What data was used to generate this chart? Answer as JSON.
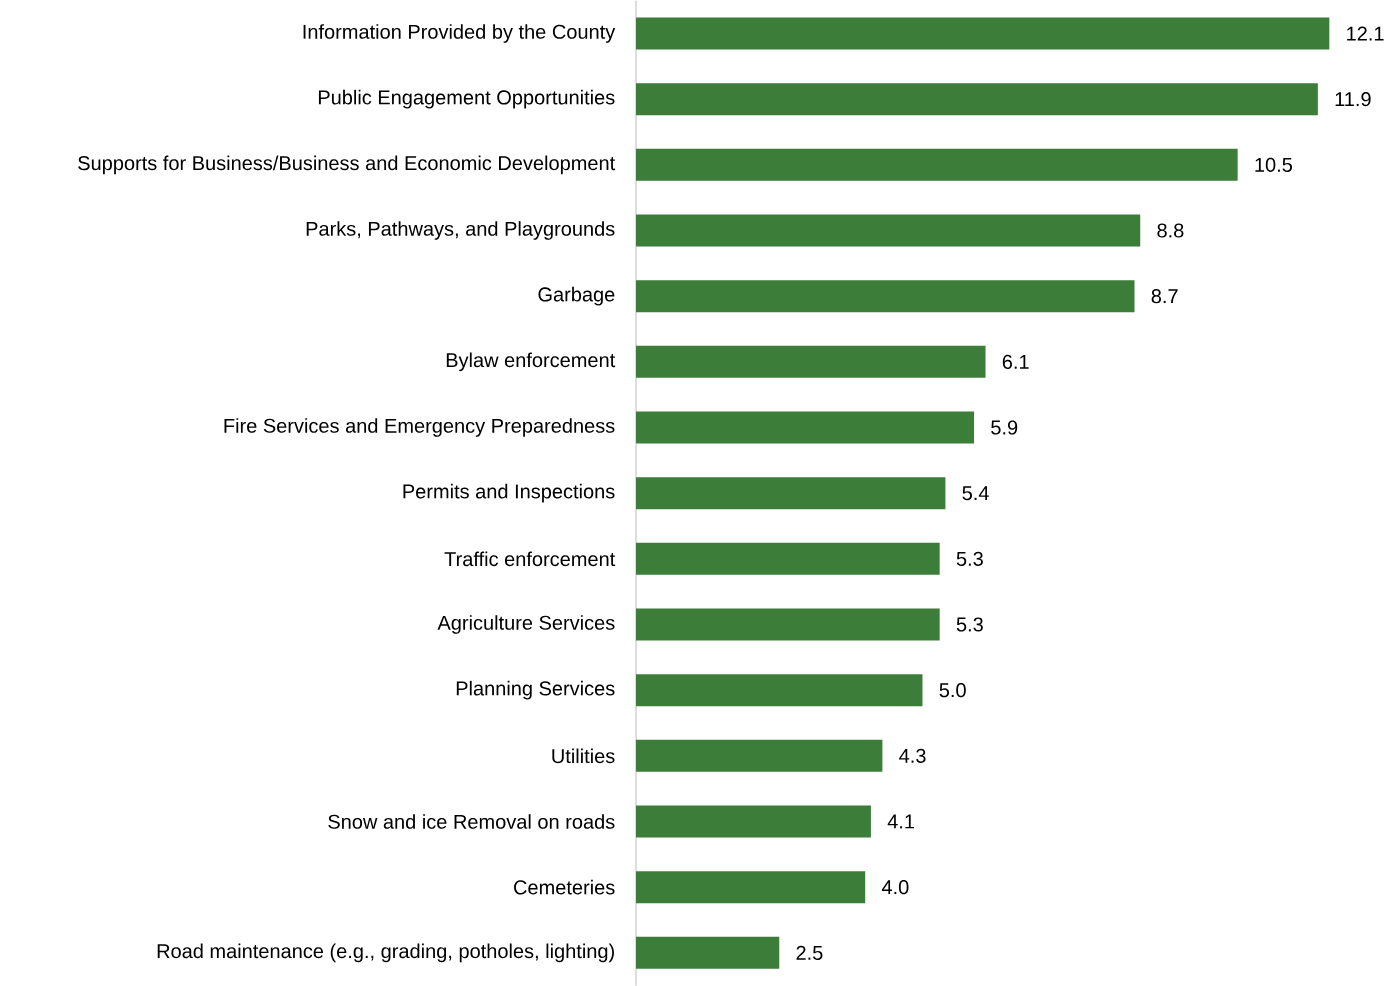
{
  "chart_data": {
    "type": "bar",
    "orientation": "horizontal",
    "categories": [
      "Information Provided by the County",
      "Public Engagement Opportunities",
      "Supports for Business/Business and Economic Development",
      "Parks, Pathways, and Playgrounds",
      "Garbage",
      "Bylaw enforcement",
      "Fire Services and Emergency Preparedness",
      "Permits and Inspections",
      "Traffic enforcement",
      "Agriculture Services",
      "Planning Services",
      "Utilities",
      "Snow and ice Removal on roads",
      "Cemeteries",
      "Road maintenance (e.g., grading, potholes, lighting)"
    ],
    "values": [
      12.1,
      11.9,
      10.5,
      8.8,
      8.7,
      6.1,
      5.9,
      5.4,
      5.3,
      5.3,
      5.0,
      4.3,
      4.1,
      4.0,
      2.5
    ],
    "value_labels": [
      "12.1",
      "11.9",
      "10.5",
      "8.8",
      "8.7",
      "6.1",
      "5.9",
      "5.4",
      "5.3",
      "5.3",
      "5.0",
      "4.3",
      "4.1",
      "4.0",
      "2.5"
    ],
    "color": "#3d7d3a"
  }
}
